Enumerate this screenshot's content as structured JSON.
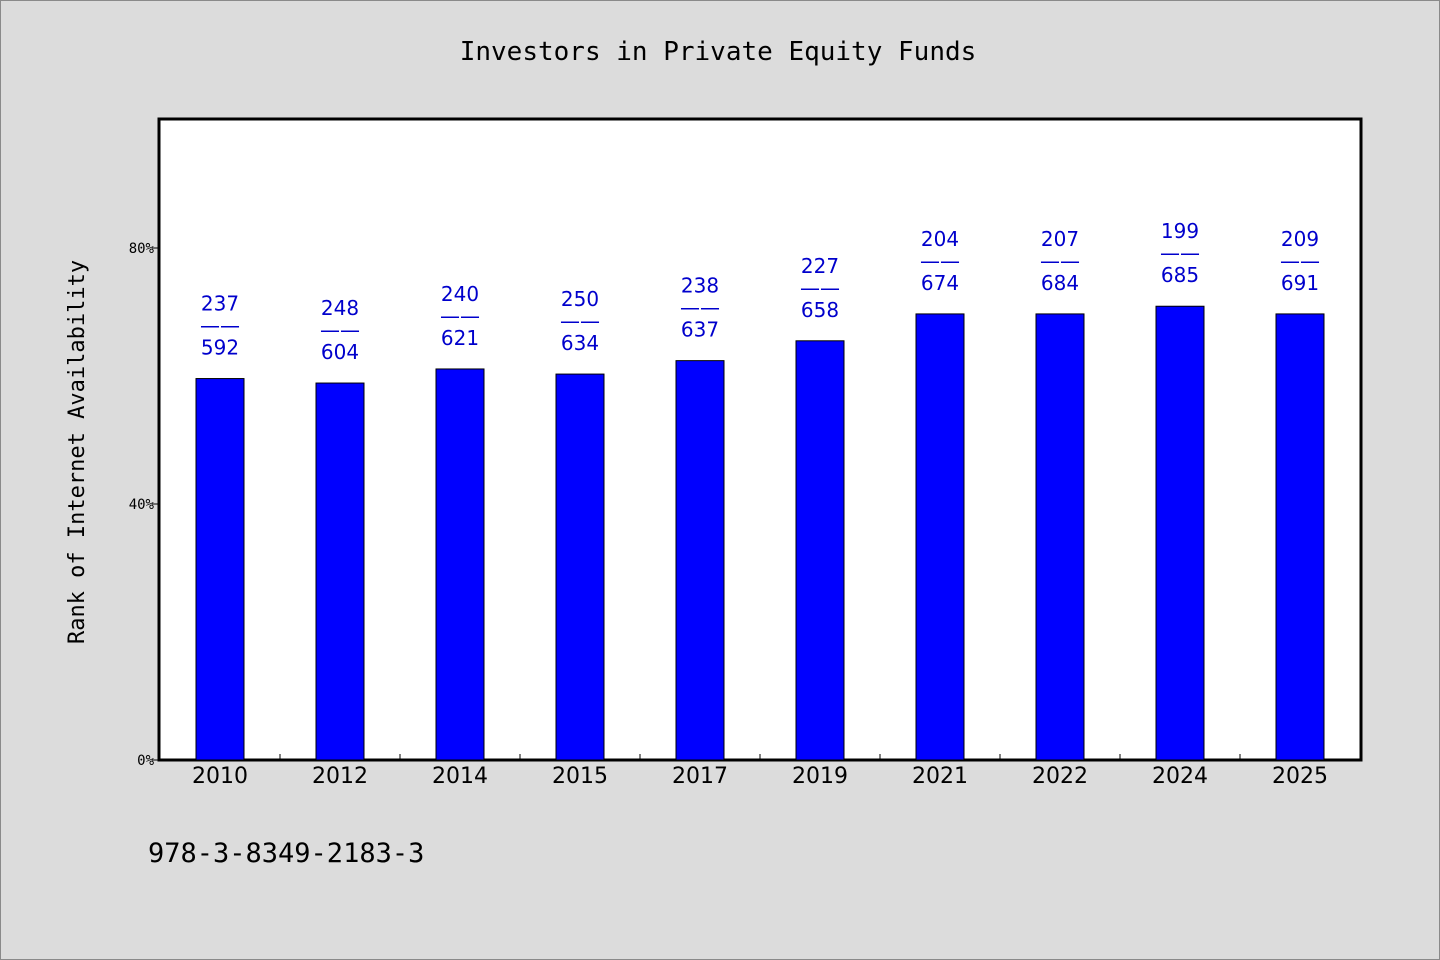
{
  "chart_data": {
    "type": "bar",
    "title": "Investors in Private Equity Funds",
    "xlabel": "",
    "ylabel": "Rank of Internet Availability",
    "categories": [
      "2010",
      "2012",
      "2014",
      "2015",
      "2017",
      "2019",
      "2021",
      "2022",
      "2024",
      "2025"
    ],
    "values": [
      0.596,
      0.589,
      0.611,
      0.603,
      0.624,
      0.655,
      0.697,
      0.697,
      0.709,
      0.697
    ],
    "bar_labels_top": [
      "237",
      "248",
      "240",
      "250",
      "238",
      "227",
      "204",
      "207",
      "199",
      "209"
    ],
    "bar_labels_separator": "——",
    "bar_labels_bottom": [
      "592",
      "604",
      "621",
      "634",
      "637",
      "658",
      "674",
      "684",
      "685",
      "691"
    ],
    "yticks": [
      {
        "value": 0,
        "label": "0%"
      },
      {
        "value": 0.4,
        "label": "40%"
      },
      {
        "value": 0.8,
        "label": "80%"
      }
    ],
    "ylim": [
      0,
      1.0
    ],
    "grid": false,
    "bar_color": "#0000ff",
    "label_color": "#0000cc",
    "background_color": "#dcdcdc",
    "plot_background": "#ffffff"
  },
  "footer": {
    "isbn": "978-3-8349-2183-3"
  }
}
